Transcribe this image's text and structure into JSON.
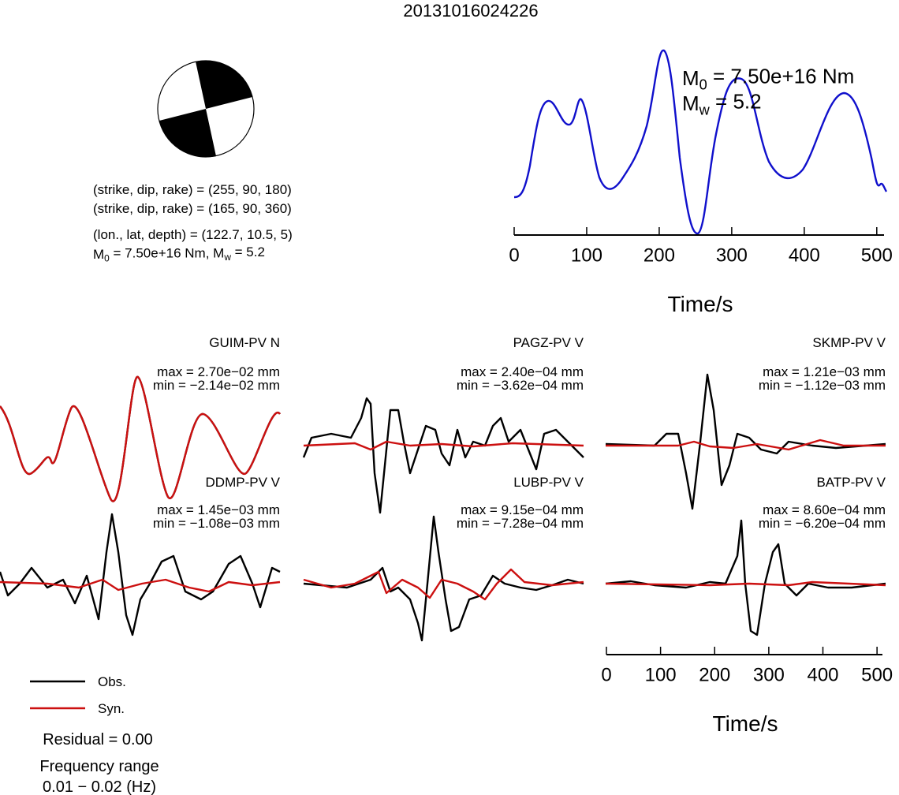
{
  "title": "20131016024226",
  "focal": {
    "lines": [
      "(strike, dip, rake) = (255, 90, 180)",
      "(strike, dip, rake) = (165, 90, 360)",
      "(lon., lat, depth) = (122.7, 10.5, 5)"
    ],
    "moment_parts": [
      "M",
      "0",
      " = 7.50e+16 Nm, M",
      "w",
      " = 5.2"
    ]
  },
  "stf": {
    "moment_lines": [
      [
        "M",
        "0",
        " = 7.50e+16 Nm"
      ],
      [
        "M",
        "w",
        " = 5.2"
      ]
    ],
    "xlim": [
      0,
      510
    ],
    "xticks": [
      0,
      100,
      200,
      300,
      400,
      500
    ],
    "xlabel": "Time/s"
  },
  "stations": [
    {
      "name": "GUIM-PV N",
      "max": "max = 2.70e−02 mm",
      "min": "min = −2.14e−02 mm"
    },
    {
      "name": "PAGZ-PV V",
      "max": "max = 2.40e−04 mm",
      "min": "min = −3.62e−04 mm"
    },
    {
      "name": "SKMP-PV V",
      "max": "max = 1.21e−03 mm",
      "min": "min = −1.12e−03 mm"
    },
    {
      "name": "DDMP-PV V",
      "max": "max = 1.45e−03 mm",
      "min": "min = −1.08e−03 mm"
    },
    {
      "name": "LUBP-PV V",
      "max": "max = 9.15e−04 mm",
      "min": "min = −7.28e−04 mm"
    },
    {
      "name": "BATP-PV V",
      "max": "max = 8.60e−04 mm",
      "min": "min = −6.20e−04 mm"
    }
  ],
  "time_axis": {
    "xlim": [
      0,
      510
    ],
    "xticks": [
      0,
      100,
      200,
      300,
      400,
      500
    ],
    "xlabel": "Time/s"
  },
  "legend": {
    "obs": "Obs.",
    "syn": "Syn.",
    "residual": "Residual = 0.00",
    "frequency_title": "Frequency range",
    "frequency_range": "0.01 − 0.02 (Hz)"
  }
}
